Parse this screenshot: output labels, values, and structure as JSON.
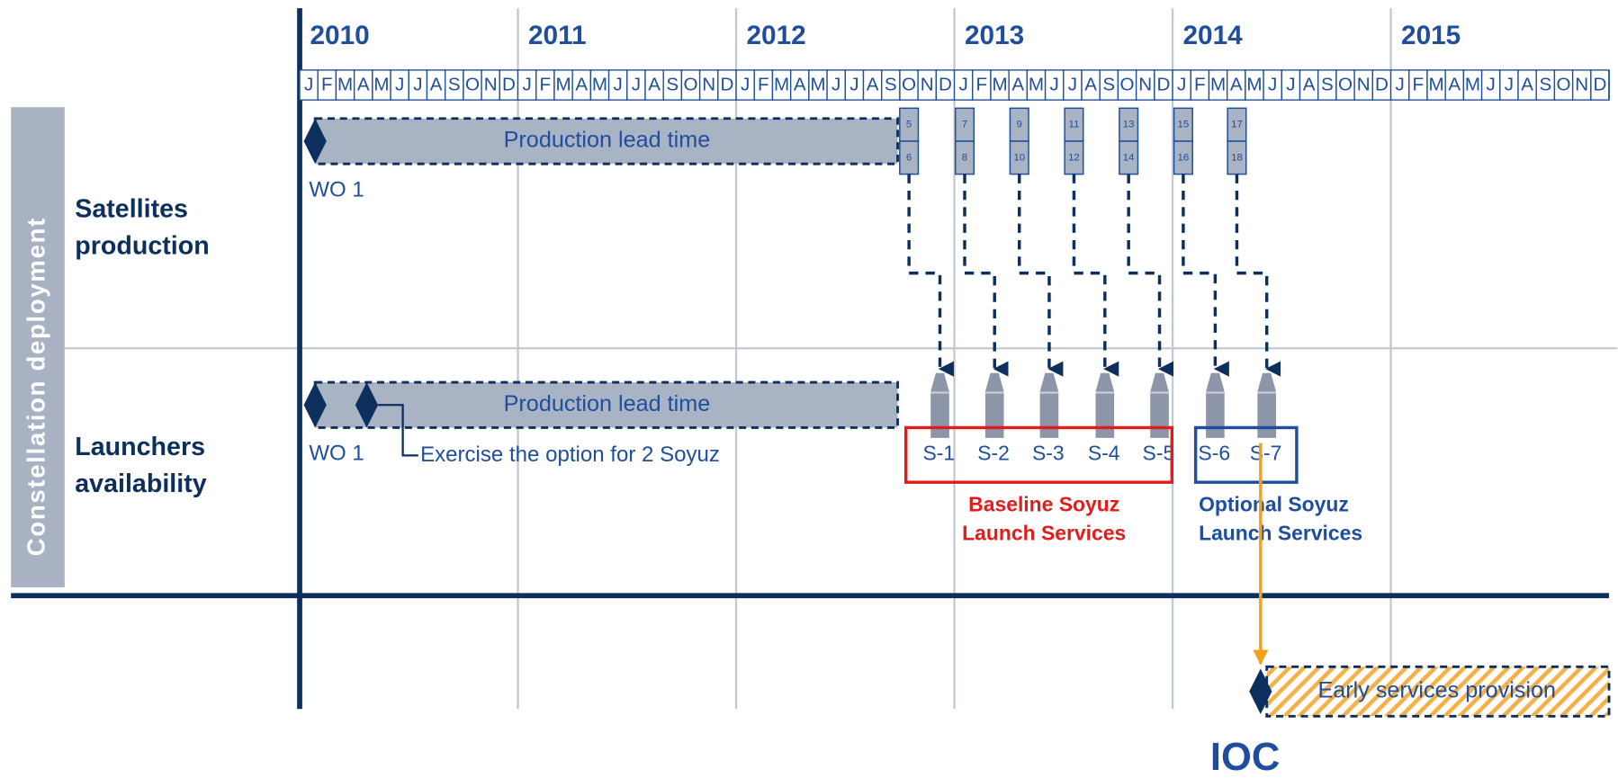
{
  "side_label": "Constellation deployment",
  "years": [
    "2010",
    "2011",
    "2012",
    "2013",
    "2014",
    "2015"
  ],
  "months": [
    "J",
    "F",
    "M",
    "A",
    "M",
    "J",
    "J",
    "A",
    "S",
    "O",
    "N",
    "D"
  ],
  "rows": [
    {
      "label": [
        "Satellites",
        "production"
      ],
      "bar": "Production lead time",
      "milestone": "WO 1"
    },
    {
      "label": [
        "Launchers",
        "availability"
      ],
      "bar": "Production lead time",
      "milestone": "WO 1",
      "option": "Exercise the option for 2 Soyuz"
    }
  ],
  "satellites": [
    [
      "5",
      "6"
    ],
    [
      "7",
      "8"
    ],
    [
      "9",
      "10"
    ],
    [
      "11",
      "12"
    ],
    [
      "13",
      "14"
    ],
    [
      "15",
      "16"
    ],
    [
      "17",
      "18"
    ]
  ],
  "launches": [
    "S-1",
    "S-2",
    "S-3",
    "S-4",
    "S-5",
    "S-6",
    "S-7"
  ],
  "groups": [
    {
      "label": [
        "Baseline Soyuz",
        "Launch Services"
      ]
    },
    {
      "label": [
        "Optional Soyuz",
        "Launch Services"
      ]
    }
  ],
  "early_services": "Early services provision",
  "ioc": "IOC"
}
